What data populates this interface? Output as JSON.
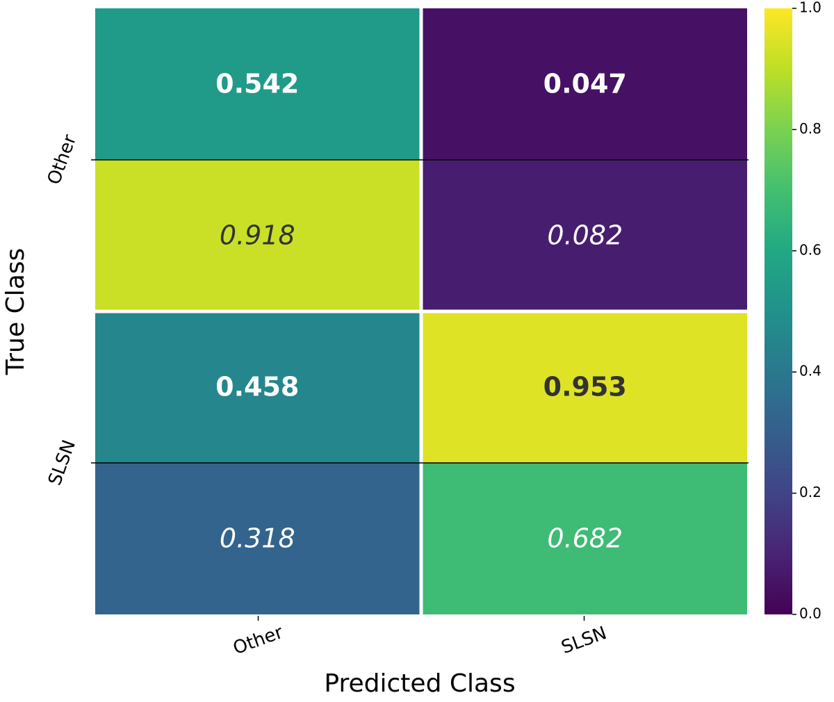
{
  "chart_data": {
    "type": "heatmap",
    "x_label": "Predicted Class",
    "y_label": "True Class",
    "x_categories": [
      "Other",
      "SLSN"
    ],
    "y_categories": [
      "Other",
      "SLSN"
    ],
    "values": [
      [
        0.542,
        0.047
      ],
      [
        0.918,
        0.082
      ],
      [
        0.458,
        0.953
      ],
      [
        0.318,
        0.682
      ]
    ],
    "row_font": [
      "bold",
      "italic",
      "bold",
      "italic"
    ],
    "colormap": "viridis",
    "clim": [
      0,
      1
    ],
    "cticks": [
      {
        "value": 0,
        "label": "0.0"
      },
      0.2,
      0.4,
      0.6,
      0.8,
      {
        "value": 1,
        "label": "1.0"
      }
    ]
  }
}
